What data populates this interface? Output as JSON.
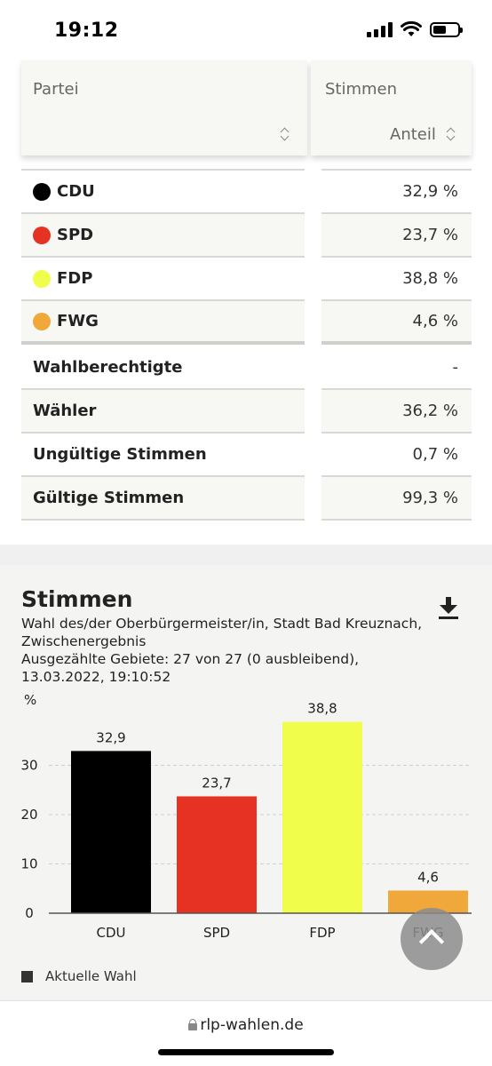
{
  "status_bar": {
    "time": "19:12"
  },
  "table": {
    "header": {
      "party": "Partei",
      "votes": "Stimmen",
      "share": "Anteil"
    },
    "parties": [
      {
        "name": "CDU",
        "share": "32,9 %",
        "color": "#000000"
      },
      {
        "name": "SPD",
        "share": "23,7 %",
        "color": "#e63223"
      },
      {
        "name": "FDP",
        "share": "38,8 %",
        "color": "#f0fd4a"
      },
      {
        "name": "FWG",
        "share": "4,6 %",
        "color": "#f1a83b"
      }
    ],
    "stats": [
      {
        "label": "Wahlberechtigte",
        "value": "-"
      },
      {
        "label": "Wähler",
        "value": "36,2 %"
      },
      {
        "label": "Ungültige Stimmen",
        "value": "0,7 %"
      },
      {
        "label": "Gültige Stimmen",
        "value": "99,3 %"
      }
    ]
  },
  "chart_section": {
    "title": "Stimmen",
    "subtitle": "Wahl des/der Oberbürgermeister/in, Stadt Bad Kreuznach, Zwischenergebnis",
    "counted": "Ausgezählte Gebiete: 27 von 27 (0 ausbleibend), 13.03.2022, 19:10:52",
    "icon": "download-icon"
  },
  "chart_data": {
    "type": "bar",
    "categories": [
      "CDU",
      "SPD",
      "FDP",
      "FWG"
    ],
    "series": [
      {
        "name": "Aktuelle Wahl",
        "values": [
          32.9,
          23.7,
          38.8,
          4.6
        ],
        "labels": [
          "32,9",
          "23,7",
          "38,8",
          "4,6"
        ]
      }
    ],
    "colors": [
      "#000000",
      "#e63223",
      "#f0fd4a",
      "#f1a83b"
    ],
    "ylabel": "%",
    "yticks": [
      0,
      10,
      20,
      30
    ],
    "ylim": [
      0,
      40
    ],
    "grid": true,
    "legend": "bottom-left"
  },
  "footer": {
    "url": "rlp-wahlen.de"
  }
}
